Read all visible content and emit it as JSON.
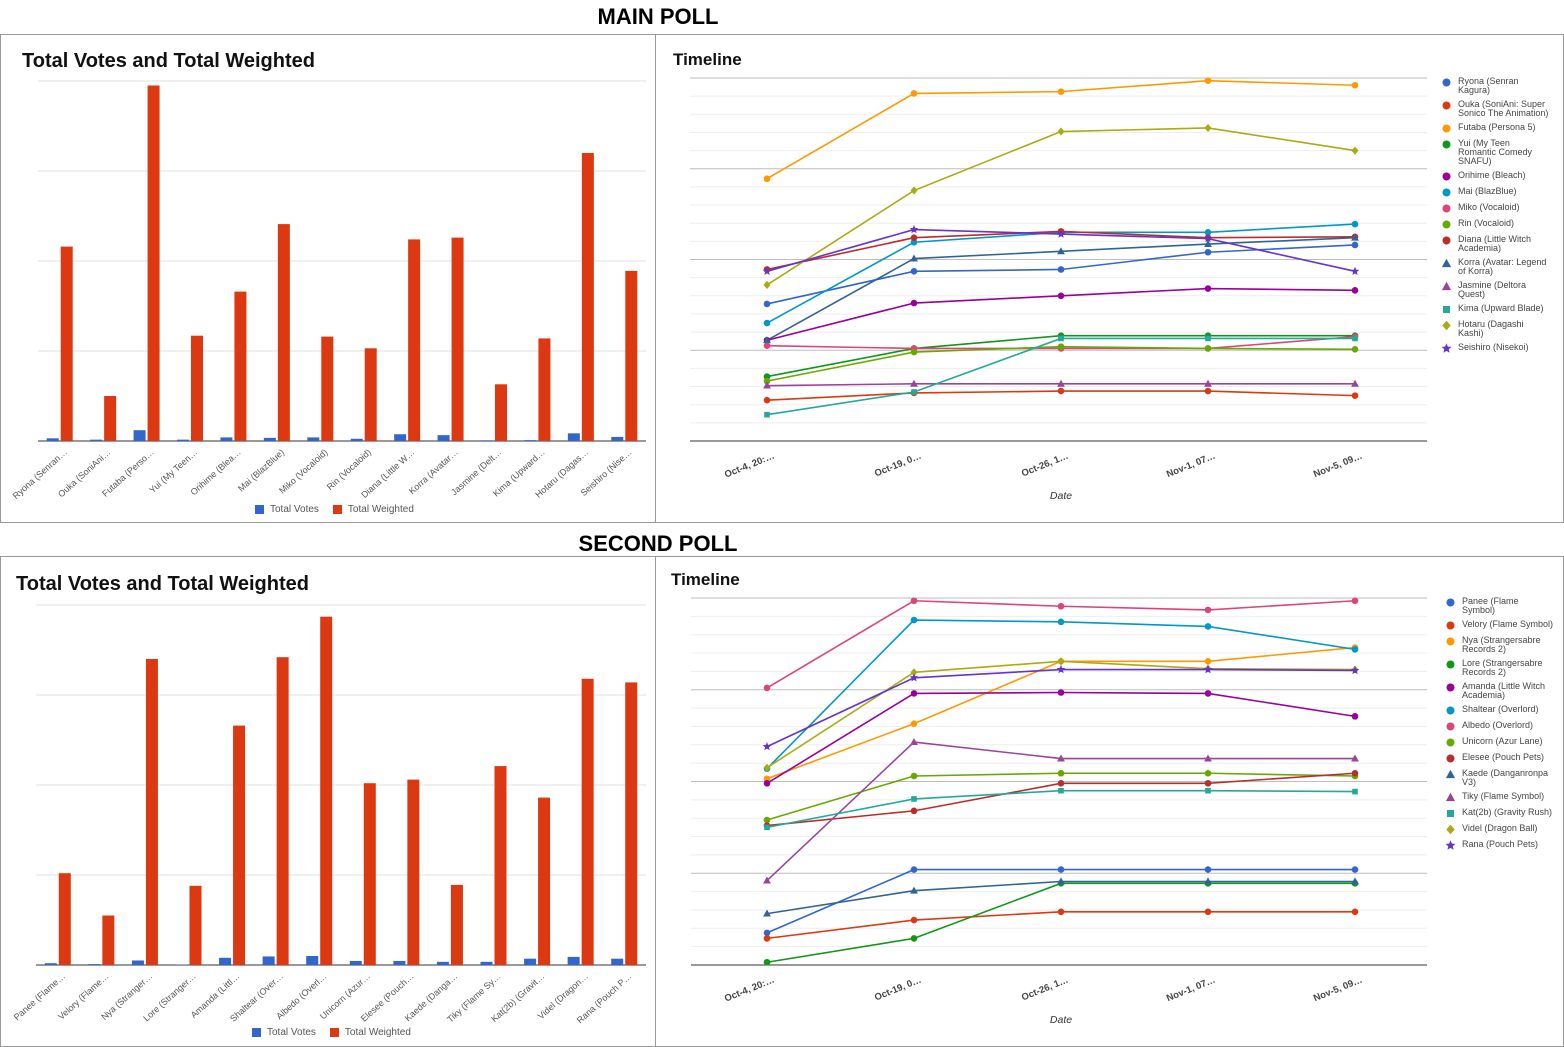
{
  "sections": [
    {
      "title": "MAIN POLL"
    },
    {
      "title": "SECOND POLL"
    }
  ],
  "chart_data": [
    {
      "id": "main-bar",
      "type": "bar",
      "title": "Total Votes and Total Weighted",
      "categories": [
        "Ryona (Senran…",
        "Ouka (SoniAni…",
        "Futaba (Perso…",
        "Yui (My Teen…",
        "Orihime (Blea…",
        "Mai (BlazBlue)",
        "Miko (Vocaloid)",
        "Rin (Vocaloid)",
        "Diana (Little W…",
        "Korra (Avatar…",
        "Jasmine (Delt…",
        "Kima (Upward…",
        "Hotaru (Dagas…",
        "Seishiro (Nise…"
      ],
      "series": [
        {
          "name": "Total Votes",
          "color": "#3366cc",
          "values": [
            3,
            1.5,
            12,
            1.5,
            4,
            3.5,
            4,
            2.5,
            7.5,
            6.5,
            0.8,
            1,
            8.5,
            4.5
          ]
        },
        {
          "name": "Total Weighted",
          "color": "#dc3912",
          "values": [
            216,
            50,
            395,
            117,
            166,
            241,
            116,
            103,
            224,
            226,
            63,
            114,
            320,
            189
          ]
        }
      ],
      "ylim": [
        0,
        400
      ]
    },
    {
      "id": "main-line",
      "type": "line",
      "title": "Timeline",
      "xlabel": "Date",
      "categories": [
        "Oct-4, 20:…",
        "Oct-19, 0…",
        "Oct-26, 1…",
        "Nov-1, 07…",
        "Nov-5, 09…"
      ],
      "ylim": [
        0,
        400
      ],
      "series": [
        {
          "name": "Ryona (Senran Kagura)",
          "color": "#3366cc",
          "marker": "circle",
          "values": [
            151,
            187,
            189,
            208,
            216
          ]
        },
        {
          "name": "Ouka (SoniAni: Super Sonico The Animation)",
          "color": "#dc3912",
          "marker": "circle",
          "values": [
            45,
            53,
            55,
            55,
            50
          ]
        },
        {
          "name": "Futaba (Persona 5)",
          "color": "#ff9900",
          "marker": "circle",
          "values": [
            289,
            383,
            385,
            397,
            392
          ]
        },
        {
          "name": "Yui (My Teen Romantic Comedy SNAFU)",
          "color": "#109618",
          "marker": "circle",
          "values": [
            71,
            102,
            116,
            116,
            116
          ]
        },
        {
          "name": "Orihime (Bleach)",
          "color": "#990099",
          "marker": "circle",
          "values": [
            111,
            152,
            160,
            168,
            166
          ]
        },
        {
          "name": "Mai (BlazBlue)",
          "color": "#0099c6",
          "marker": "circle",
          "values": [
            130,
            219,
            230,
            230,
            239
          ]
        },
        {
          "name": "Miko (Vocaloid)",
          "color": "#dd4477",
          "marker": "circle",
          "values": [
            105,
            102,
            102,
            102,
            115
          ]
        },
        {
          "name": "Rin (Vocaloid)",
          "color": "#66aa00",
          "marker": "circle",
          "values": [
            66,
            98,
            104,
            102,
            101
          ]
        },
        {
          "name": "Diana (Little Witch Academia)",
          "color": "#b82e2e",
          "marker": "circle",
          "values": [
            189,
            224,
            231,
            224,
            225
          ]
        },
        {
          "name": "Korra (Avatar: Legend of Korra)",
          "color": "#316395",
          "marker": "triangle",
          "values": [
            111,
            201,
            209,
            217,
            224
          ]
        },
        {
          "name": "Jasmine (Deltora Quest)",
          "color": "#994499",
          "marker": "triangle",
          "values": [
            61,
            63,
            63,
            63,
            63
          ]
        },
        {
          "name": "Kima (Upward Blade)",
          "color": "#22aa99",
          "marker": "square",
          "values": [
            29,
            54,
            113,
            113,
            113
          ]
        },
        {
          "name": "Hotaru (Dagashi Kashi)",
          "color": "#aaaa11",
          "marker": "diamond",
          "values": [
            172,
            276,
            341,
            345,
            320
          ]
        },
        {
          "name": "Seishiro (Nisekoi)",
          "color": "#6633cc",
          "marker": "star",
          "values": [
            187,
            233,
            228,
            223,
            187
          ]
        }
      ]
    },
    {
      "id": "second-bar",
      "type": "bar",
      "title": "Total Votes and Total Weighted",
      "categories": [
        "Panee (Flame…",
        "Velory (Flame…",
        "Nya (Stranger…",
        "Lore (Stranger…",
        "Amanda (Littl…",
        "Shaltear (Over…",
        "Albedo (Overl…",
        "Unicorn (Azur…",
        "Elesee (Pouch…",
        "Kaede (Danga…",
        "Tiky (Flame Sy…",
        "Kat(2b) (Gravit…",
        "Videl (Dragon…",
        "Rana (Pouch P…"
      ],
      "series": [
        {
          "name": "Total Votes",
          "color": "#3366cc",
          "values": [
            2,
            1,
            5,
            0.5,
            8,
            9.5,
            10,
            4.5,
            4.5,
            3.5,
            3.5,
            7,
            9,
            7
          ]
        },
        {
          "name": "Total Weighted",
          "color": "#dc3912",
          "values": [
            102,
            55,
            340,
            88,
            266,
            342,
            387,
            202,
            206,
            89,
            221,
            186,
            318,
            314
          ]
        }
      ],
      "ylim": [
        0,
        400
      ]
    },
    {
      "id": "second-line",
      "type": "line",
      "title": "Timeline",
      "xlabel": "Date",
      "categories": [
        "Oct-4, 20:…",
        "Oct-19, 0…",
        "Oct-26, 1…",
        "Nov-1, 07…",
        "Nov-5, 09…"
      ],
      "ylim": [
        0,
        400
      ],
      "series": [
        {
          "name": "Panee (Flame Symbol)",
          "color": "#3366cc",
          "marker": "circle",
          "values": [
            35,
            104,
            104,
            104,
            104
          ]
        },
        {
          "name": "Velory (Flame Symbol)",
          "color": "#dc3912",
          "marker": "circle",
          "values": [
            29,
            49,
            58,
            58,
            58
          ]
        },
        {
          "name": "Nya (Strangersabre Records 2)",
          "color": "#ff9900",
          "marker": "circle",
          "values": [
            203,
            263,
            331,
            331,
            346
          ]
        },
        {
          "name": "Lore (Strangersabre Records 2)",
          "color": "#109618",
          "marker": "circle",
          "values": [
            3,
            29,
            89,
            89,
            89
          ]
        },
        {
          "name": "Amanda (Little Witch Academia)",
          "color": "#990099",
          "marker": "circle",
          "values": [
            198,
            296,
            297,
            296,
            271
          ]
        },
        {
          "name": "Shaltear (Overlord)",
          "color": "#0099c6",
          "marker": "circle",
          "values": [
            214,
            376,
            374,
            369,
            344
          ]
        },
        {
          "name": "Albedo (Overlord)",
          "color": "#dd4477",
          "marker": "circle",
          "values": [
            302,
            397,
            391,
            387,
            397
          ]
        },
        {
          "name": "Unicorn (Azur Lane)",
          "color": "#66aa00",
          "marker": "circle",
          "values": [
            158,
            206,
            209,
            209,
            206
          ]
        },
        {
          "name": "Elesee (Pouch Pets)",
          "color": "#b82e2e",
          "marker": "circle",
          "values": [
            152,
            168,
            198,
            198,
            209
          ]
        },
        {
          "name": "Kaede (Danganronpa V3)",
          "color": "#316395",
          "marker": "triangle",
          "values": [
            56,
            81,
            91,
            91,
            91
          ]
        },
        {
          "name": "Tiky (Flame Symbol)",
          "color": "#994499",
          "marker": "triangle",
          "values": [
            92,
            243,
            225,
            225,
            225
          ]
        },
        {
          "name": "Kat(2b) (Gravity Rush)",
          "color": "#22aa99",
          "marker": "square",
          "values": [
            150,
            181,
            190,
            190,
            189
          ]
        },
        {
          "name": "Videl (Dragon Ball)",
          "color": "#aaaa11",
          "marker": "diamond",
          "values": [
            215,
            319,
            331,
            323,
            322
          ]
        },
        {
          "name": "Rana (Pouch Pets)",
          "color": "#6633cc",
          "marker": "star",
          "values": [
            238,
            313,
            322,
            322,
            321
          ]
        }
      ]
    }
  ]
}
